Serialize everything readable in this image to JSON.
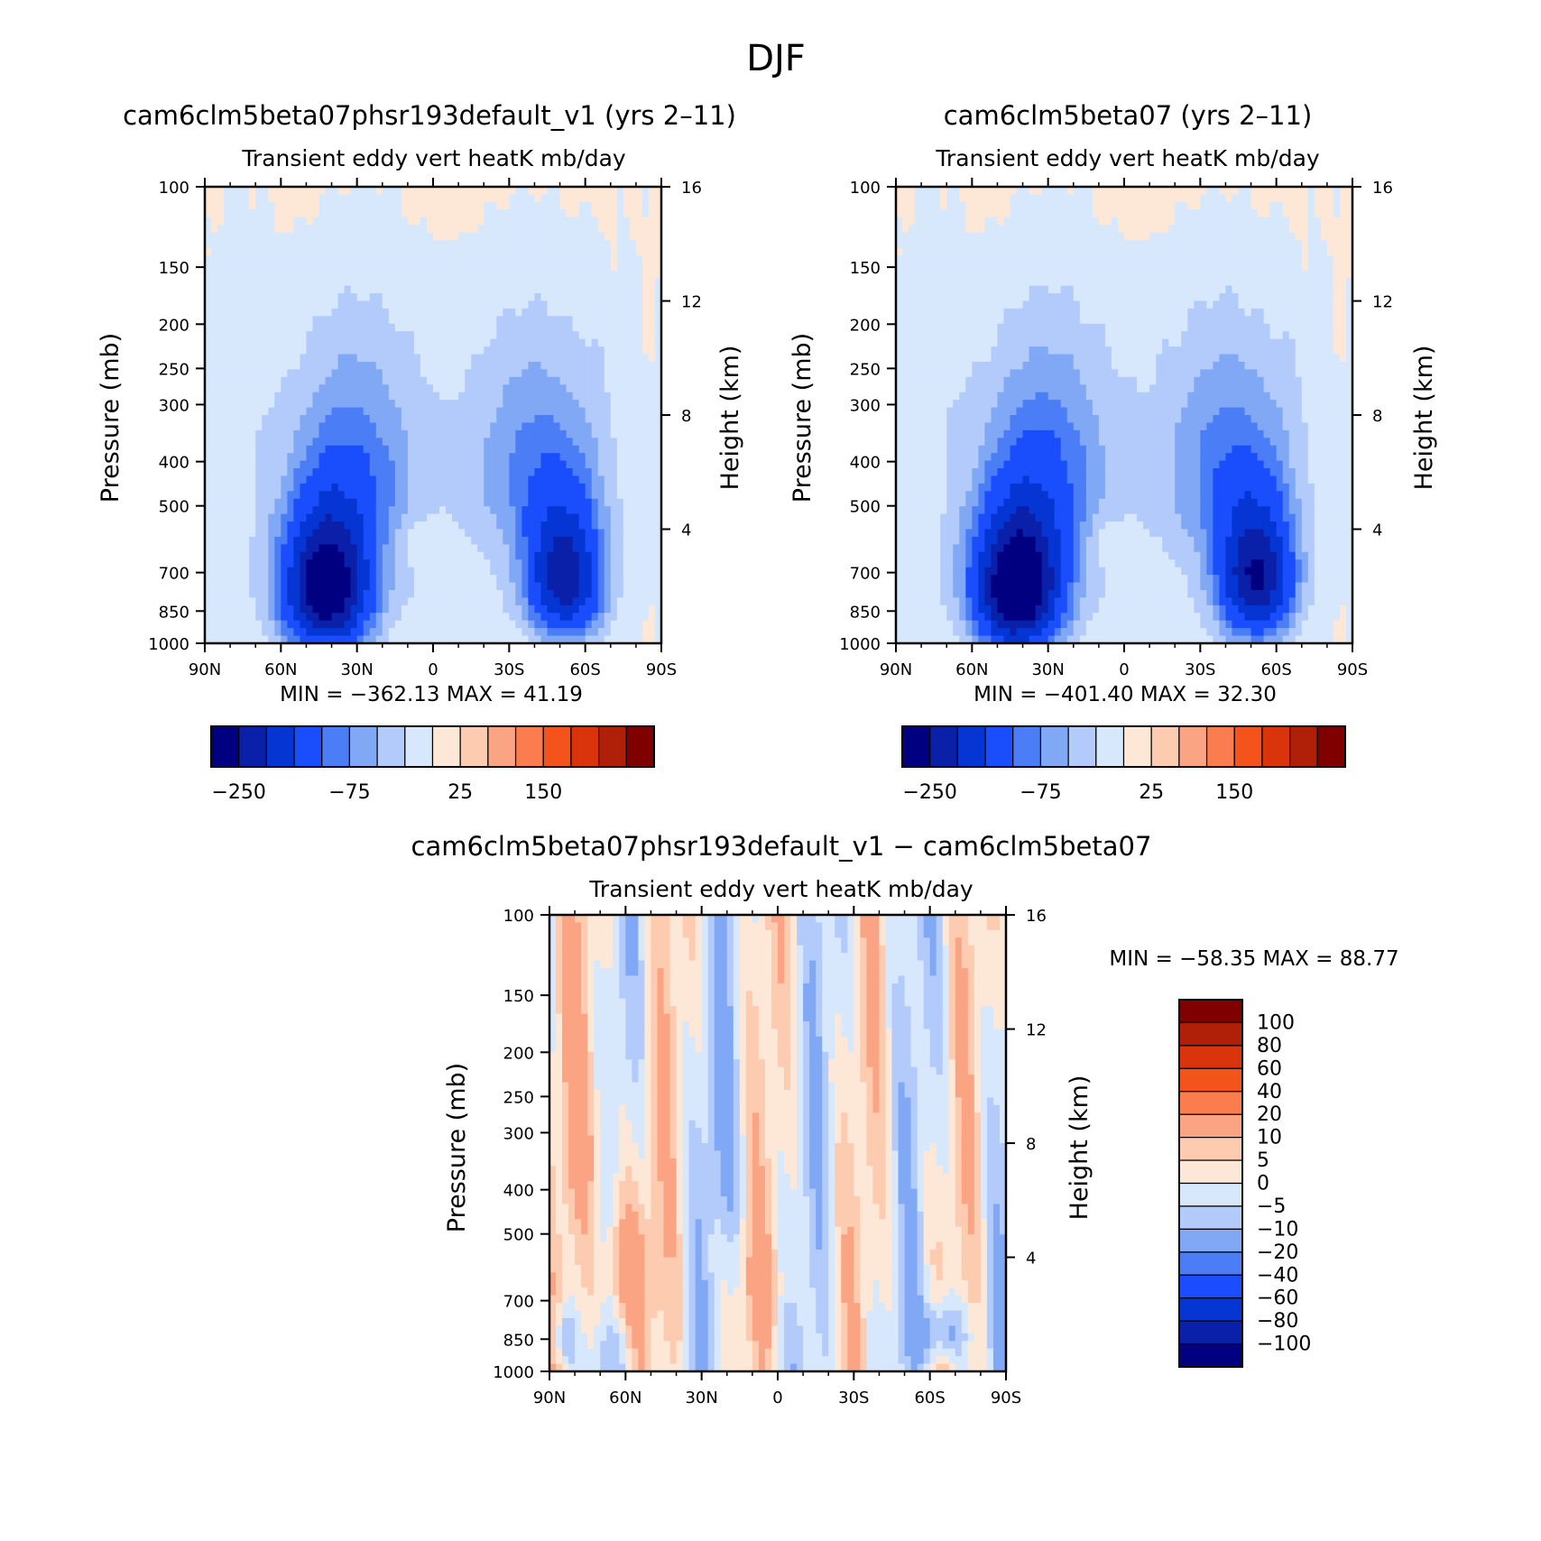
{
  "figure": {
    "title": "DJF"
  },
  "panels": [
    {
      "id": "p1",
      "title": "cam6clm5beta07phsr193default_v1 (yrs 2–11)",
      "subtitle": "Transient eddy vert heatK mb/day",
      "ylabel": "Pressure (mb)",
      "y2label": "Height (km)",
      "stats": "MIN = −362.13   MAX =   41.19",
      "field_scale": 1.0
    },
    {
      "id": "p2",
      "title": "cam6clm5beta07 (yrs 2–11)",
      "subtitle": "Transient eddy vert heatK mb/day",
      "ylabel": "Pressure (mb)",
      "y2label": "Height (km)",
      "stats": "MIN = −401.40   MAX =   32.30",
      "field_scale": 1.0
    },
    {
      "id": "p3",
      "title": "cam6clm5beta07phsr193default_v1 − cam6clm5beta07",
      "subtitle": "Transient eddy vert heatK mb/day",
      "ylabel": "Pressure (mb)",
      "y2label": "Height (km)",
      "stats": "MIN = −58.35   MAX =   88.77",
      "field_scale": 1.0
    }
  ],
  "chart_data": [
    {
      "type": "heatmap",
      "title": "cam6clm5beta07phsr193default_v1 (yrs 2–11)",
      "subtitle": "Transient eddy vert heatK mb/day",
      "x_ticks": [
        "90N",
        "60N",
        "30N",
        "0",
        "30S",
        "60S",
        "90S"
      ],
      "x_tick_values": [
        90,
        60,
        30,
        0,
        -30,
        -60,
        -90
      ],
      "y_ticks": [
        100,
        150,
        200,
        250,
        300,
        400,
        500,
        700,
        850,
        1000
      ],
      "y_scale": "log",
      "ylim": [
        1000,
        100
      ],
      "y2_ticks": [
        4,
        8,
        12,
        16
      ],
      "min": -362.13,
      "max": 41.19,
      "levels": [
        -250,
        -200,
        -150,
        -100,
        -75,
        -50,
        -25,
        0,
        25,
        50,
        75,
        100,
        150,
        200,
        250
      ],
      "colorbar_labels": [
        "−250",
        "−75",
        "25",
        "150"
      ],
      "features": [
        {
          "lat": 45,
          "p": 720,
          "value": -300
        },
        {
          "lat": -50,
          "p": 650,
          "value": -220
        },
        {
          "lat": 5,
          "p": 600,
          "value": 15
        }
      ]
    },
    {
      "type": "heatmap",
      "title": "cam6clm5beta07 (yrs 2–11)",
      "subtitle": "Transient eddy vert heatK mb/day",
      "x_ticks": [
        "90N",
        "60N",
        "30N",
        "0",
        "30S",
        "60S",
        "90S"
      ],
      "x_tick_values": [
        90,
        60,
        30,
        0,
        -30,
        -60,
        -90
      ],
      "y_ticks": [
        100,
        150,
        200,
        250,
        300,
        400,
        500,
        700,
        850,
        1000
      ],
      "y_scale": "log",
      "ylim": [
        1000,
        100
      ],
      "y2_ticks": [
        4,
        8,
        12,
        16
      ],
      "min": -401.4,
      "max": 32.3,
      "levels": [
        -250,
        -200,
        -150,
        -100,
        -75,
        -50,
        -25,
        0,
        25,
        50,
        75,
        100,
        150,
        200,
        250
      ],
      "colorbar_labels": [
        "−250",
        "−75",
        "25",
        "150"
      ],
      "features": [
        {
          "lat": 45,
          "p": 720,
          "value": -320
        },
        {
          "lat": -50,
          "p": 650,
          "value": -230
        },
        {
          "lat": 5,
          "p": 600,
          "value": 15
        }
      ]
    },
    {
      "type": "heatmap",
      "title": "cam6clm5beta07phsr193default_v1 − cam6clm5beta07",
      "subtitle": "Transient eddy vert heatK mb/day",
      "x_ticks": [
        "90N",
        "60N",
        "30N",
        "0",
        "30S",
        "60S",
        "90S"
      ],
      "x_tick_values": [
        90,
        60,
        30,
        0,
        -30,
        -60,
        -90
      ],
      "y_ticks": [
        100,
        150,
        200,
        250,
        300,
        400,
        500,
        700,
        850,
        1000
      ],
      "y_scale": "log",
      "ylim": [
        1000,
        100
      ],
      "y2_ticks": [
        4,
        8,
        12,
        16
      ],
      "min": -58.35,
      "max": 88.77,
      "levels": [
        -100,
        -80,
        -60,
        -40,
        -20,
        -10,
        -5,
        0,
        5,
        10,
        20,
        40,
        60,
        80,
        100
      ],
      "colorbar_labels": [
        "100",
        "80",
        "60",
        "40",
        "20",
        "10",
        "5",
        "0",
        "−5",
        "−10",
        "−20",
        "−40",
        "−60",
        "−80",
        "−100"
      ],
      "features": [
        {
          "lat": 60,
          "p": 600,
          "value": 20
        },
        {
          "lat": -65,
          "p": 800,
          "value": -20
        }
      ]
    }
  ],
  "colors": {
    "palette": [
      "#000080",
      "#0a20a8",
      "#0535d2",
      "#1a4dfb",
      "#4a7df6",
      "#80a8f5",
      "#b3cbfb",
      "#d7e8fd",
      "#fde8d8",
      "#fccbb0",
      "#fba484",
      "#fb7d4f",
      "#f4541c",
      "#d9340b",
      "#b01f08",
      "#800000"
    ]
  }
}
